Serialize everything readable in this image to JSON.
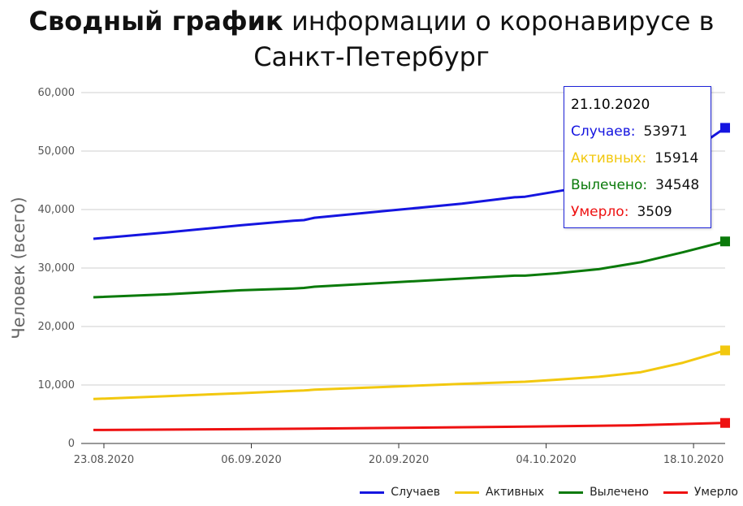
{
  "title_bold": "Сводный график",
  "title_rest": " информации о коронавирусе в Санкт-Петербург",
  "tooltip": {
    "date": "21.10.2020",
    "rows": [
      {
        "label": "Случаев:",
        "value": "53971",
        "color": "#1515e0"
      },
      {
        "label": "Активных:",
        "value": "15914",
        "color": "#f2c80f"
      },
      {
        "label": "Вылечено:",
        "value": "34548",
        "color": "#0a7a0a"
      },
      {
        "label": "Умерло:",
        "value": "3509",
        "color": "#ee1111"
      }
    ]
  },
  "chart_data": {
    "type": "line",
    "ylabel": "Человек (всего)",
    "ylim": [
      0,
      60000
    ],
    "y_ticks": [
      0,
      10000,
      20000,
      30000,
      40000,
      50000,
      60000
    ],
    "y_tick_labels": [
      "0",
      "10,000",
      "20,000",
      "30,000",
      "40,000",
      "50,000",
      "60,000"
    ],
    "x_tick_labels": [
      "23.08.2020",
      "06.09.2020",
      "20.09.2020",
      "04.10.2020",
      "18.10.2020"
    ],
    "x_range": [
      "2020-08-22",
      "2020-10-21"
    ],
    "grid": true,
    "legend_position": "bottom-right",
    "series": [
      {
        "name": "Случаев",
        "color": "#1515e0",
        "points": [
          [
            "2020-08-22",
            35000
          ],
          [
            "2020-08-29",
            36100
          ],
          [
            "2020-09-05",
            37300
          ],
          [
            "2020-09-10",
            38100
          ],
          [
            "2020-09-11",
            38200
          ],
          [
            "2020-09-12",
            38600
          ],
          [
            "2020-09-19",
            39800
          ],
          [
            "2020-09-26",
            41000
          ],
          [
            "2020-10-01",
            42100
          ],
          [
            "2020-10-02",
            42200
          ],
          [
            "2020-10-05",
            43100
          ],
          [
            "2020-10-08",
            44000
          ],
          [
            "2020-10-12",
            45500
          ],
          [
            "2020-10-17",
            49000
          ],
          [
            "2020-10-21",
            53971
          ]
        ]
      },
      {
        "name": "Активных",
        "color": "#f2c80f",
        "points": [
          [
            "2020-08-22",
            7600
          ],
          [
            "2020-08-29",
            8100
          ],
          [
            "2020-09-05",
            8600
          ],
          [
            "2020-09-10",
            9000
          ],
          [
            "2020-09-11",
            9050
          ],
          [
            "2020-09-12",
            9200
          ],
          [
            "2020-09-19",
            9700
          ],
          [
            "2020-09-26",
            10200
          ],
          [
            "2020-10-01",
            10500
          ],
          [
            "2020-10-02",
            10550
          ],
          [
            "2020-10-05",
            10900
          ],
          [
            "2020-10-09",
            11400
          ],
          [
            "2020-10-13",
            12200
          ],
          [
            "2020-10-17",
            13800
          ],
          [
            "2020-10-21",
            15914
          ]
        ]
      },
      {
        "name": "Вылечено",
        "color": "#0a7a0a",
        "points": [
          [
            "2020-08-22",
            25000
          ],
          [
            "2020-08-29",
            25500
          ],
          [
            "2020-09-05",
            26200
          ],
          [
            "2020-09-10",
            26500
          ],
          [
            "2020-09-11",
            26600
          ],
          [
            "2020-09-12",
            26800
          ],
          [
            "2020-09-19",
            27500
          ],
          [
            "2020-09-26",
            28200
          ],
          [
            "2020-10-01",
            28700
          ],
          [
            "2020-10-02",
            28700
          ],
          [
            "2020-10-05",
            29100
          ],
          [
            "2020-10-09",
            29800
          ],
          [
            "2020-10-13",
            31000
          ],
          [
            "2020-10-17",
            32700
          ],
          [
            "2020-10-21",
            34548
          ]
        ]
      },
      {
        "name": "Умерло",
        "color": "#ee1111",
        "points": [
          [
            "2020-08-22",
            2300
          ],
          [
            "2020-09-05",
            2450
          ],
          [
            "2020-09-19",
            2650
          ],
          [
            "2020-10-03",
            2900
          ],
          [
            "2020-10-12",
            3100
          ],
          [
            "2020-10-21",
            3509
          ]
        ]
      }
    ]
  }
}
